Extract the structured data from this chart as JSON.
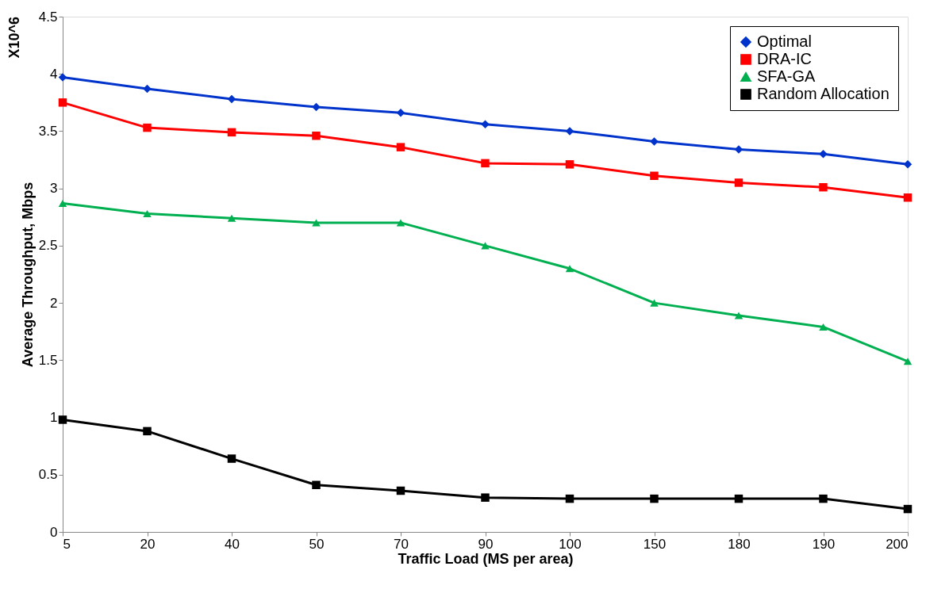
{
  "chart_data": {
    "type": "line",
    "xlabel": "Traffic Load (MS per area)",
    "ylabel": "Average Throughput, Mbps",
    "annotations": [
      "X10^6"
    ],
    "categories": [
      "5",
      "20",
      "40",
      "50",
      "70",
      "90",
      "100",
      "150",
      "180",
      "190",
      "200"
    ],
    "ylim": [
      0,
      4.5
    ],
    "yticks": [
      0,
      0.5,
      1,
      1.5,
      2,
      2.5,
      3,
      3.5,
      4,
      4.5
    ],
    "grid": false,
    "legend": "top right",
    "line_style": "solid",
    "series": [
      {
        "name": "Optimal",
        "color": "#0033cc",
        "marker": "diamond",
        "values": [
          3.97,
          3.87,
          3.78,
          3.71,
          3.66,
          3.56,
          3.5,
          3.41,
          3.34,
          3.3,
          3.21
        ]
      },
      {
        "name": "DRA-IC",
        "color": "#ff0000",
        "marker": "square",
        "values": [
          3.75,
          3.53,
          3.49,
          3.46,
          3.36,
          3.22,
          3.21,
          3.11,
          3.05,
          3.01,
          2.92
        ]
      },
      {
        "name": "SFA-GA",
        "color": "#00b050",
        "marker": "triangle",
        "values": [
          2.87,
          2.78,
          2.74,
          2.7,
          2.7,
          2.5,
          2.3,
          2.0,
          1.89,
          1.79,
          1.49
        ]
      },
      {
        "name": "Random Allocation",
        "color": "#000000",
        "marker": "square",
        "values": [
          0.98,
          0.88,
          0.64,
          0.41,
          0.36,
          0.3,
          0.29,
          0.29,
          0.29,
          0.29,
          0.2
        ]
      }
    ]
  }
}
